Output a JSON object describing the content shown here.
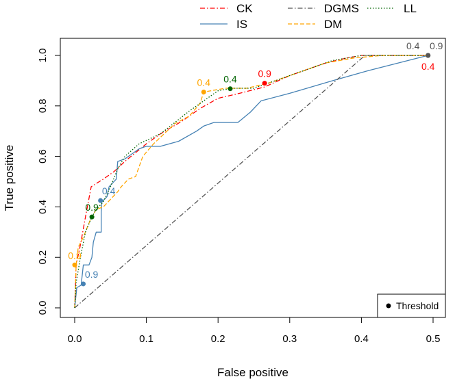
{
  "chart_data": {
    "type": "line",
    "xlabel": "False positive",
    "ylabel": "True positive",
    "xlim": [
      0,
      0.5
    ],
    "ylim": [
      0,
      1
    ],
    "x_ticks": [
      0.0,
      0.1,
      0.2,
      0.3,
      0.4,
      0.5
    ],
    "x_tick_labels": [
      "0.0",
      "0.1",
      "0.2",
      "0.3",
      "0.4",
      "0.5"
    ],
    "y_ticks": [
      0.0,
      0.2,
      0.4,
      0.6,
      0.8,
      1.0
    ],
    "y_tick_labels": [
      "0.0",
      "0.2",
      "0.4",
      "0.6",
      "0.8",
      "1.0"
    ],
    "grid": false,
    "legend_position": "top",
    "series": [
      {
        "name": "CK",
        "color": "#ff0000",
        "dash": "dashdot",
        "points": [
          [
            0,
            0
          ],
          [
            0.002,
            0.17
          ],
          [
            0.008,
            0.25
          ],
          [
            0.015,
            0.36
          ],
          [
            0.023,
            0.48
          ],
          [
            0.04,
            0.51
          ],
          [
            0.055,
            0.54
          ],
          [
            0.07,
            0.58
          ],
          [
            0.1,
            0.65
          ],
          [
            0.12,
            0.69
          ],
          [
            0.15,
            0.74
          ],
          [
            0.175,
            0.79
          ],
          [
            0.2,
            0.83
          ],
          [
            0.23,
            0.85
          ],
          [
            0.265,
            0.875
          ],
          [
            0.3,
            0.92
          ],
          [
            0.35,
            0.97
          ],
          [
            0.38,
            0.99
          ],
          [
            0.4,
            1.0
          ],
          [
            0.43,
            1.0
          ],
          [
            0.493,
            1.0
          ]
        ]
      },
      {
        "name": "IS",
        "color": "#4682b4",
        "dash": "solid",
        "points": [
          [
            0,
            0
          ],
          [
            0.003,
            0.08
          ],
          [
            0.009,
            0.09
          ],
          [
            0.012,
            0.17
          ],
          [
            0.02,
            0.17
          ],
          [
            0.024,
            0.2
          ],
          [
            0.026,
            0.26
          ],
          [
            0.03,
            0.3
          ],
          [
            0.037,
            0.3
          ],
          [
            0.037,
            0.38
          ],
          [
            0.038,
            0.42
          ],
          [
            0.045,
            0.44
          ],
          [
            0.048,
            0.48
          ],
          [
            0.058,
            0.51
          ],
          [
            0.06,
            0.58
          ],
          [
            0.07,
            0.59
          ],
          [
            0.08,
            0.61
          ],
          [
            0.09,
            0.63
          ],
          [
            0.1,
            0.64
          ],
          [
            0.12,
            0.64
          ],
          [
            0.145,
            0.66
          ],
          [
            0.17,
            0.7
          ],
          [
            0.18,
            0.72
          ],
          [
            0.195,
            0.735
          ],
          [
            0.228,
            0.735
          ],
          [
            0.245,
            0.775
          ],
          [
            0.26,
            0.82
          ],
          [
            0.3,
            0.85
          ],
          [
            0.36,
            0.9
          ],
          [
            0.41,
            0.94
          ],
          [
            0.493,
            1.0
          ]
        ]
      },
      {
        "name": "DGMS",
        "color": "#555555",
        "dash": "dashdot",
        "points": [
          [
            0,
            0
          ],
          [
            0.405,
            1.0
          ],
          [
            0.493,
            1.0
          ]
        ]
      },
      {
        "name": "DM",
        "color": "#ffa500",
        "dash": "dashed",
        "points": [
          [
            0,
            0
          ],
          [
            0.002,
            0.17
          ],
          [
            0.005,
            0.24
          ],
          [
            0.012,
            0.28
          ],
          [
            0.022,
            0.35
          ],
          [
            0.03,
            0.39
          ],
          [
            0.04,
            0.4
          ],
          [
            0.05,
            0.43
          ],
          [
            0.06,
            0.46
          ],
          [
            0.065,
            0.48
          ],
          [
            0.075,
            0.51
          ],
          [
            0.085,
            0.52
          ],
          [
            0.095,
            0.6
          ],
          [
            0.11,
            0.65
          ],
          [
            0.14,
            0.73
          ],
          [
            0.16,
            0.76
          ],
          [
            0.175,
            0.81
          ],
          [
            0.18,
            0.855
          ],
          [
            0.21,
            0.87
          ],
          [
            0.24,
            0.87
          ],
          [
            0.27,
            0.89
          ],
          [
            0.3,
            0.92
          ],
          [
            0.35,
            0.97
          ],
          [
            0.39,
            0.99
          ],
          [
            0.43,
            1.0
          ],
          [
            0.493,
            1.0
          ]
        ]
      },
      {
        "name": "LL",
        "color": "#006400",
        "dash": "dotted",
        "points": [
          [
            0,
            0
          ],
          [
            0.002,
            0.1
          ],
          [
            0.008,
            0.2
          ],
          [
            0.015,
            0.3
          ],
          [
            0.024,
            0.36
          ],
          [
            0.03,
            0.39
          ],
          [
            0.04,
            0.42
          ],
          [
            0.05,
            0.48
          ],
          [
            0.06,
            0.55
          ],
          [
            0.07,
            0.6
          ],
          [
            0.09,
            0.65
          ],
          [
            0.12,
            0.69
          ],
          [
            0.16,
            0.78
          ],
          [
            0.18,
            0.82
          ],
          [
            0.2,
            0.86
          ],
          [
            0.22,
            0.87
          ],
          [
            0.25,
            0.87
          ],
          [
            0.28,
            0.9
          ],
          [
            0.32,
            0.94
          ],
          [
            0.36,
            0.98
          ],
          [
            0.4,
            1.0
          ],
          [
            0.493,
            1.0
          ]
        ]
      }
    ],
    "threshold_points": [
      {
        "series": "CK",
        "x": 0.265,
        "y": 0.89,
        "label": "0.9",
        "color": "#ff0000",
        "dot_color": "#ff0000",
        "label_pos": "above"
      },
      {
        "series": "CK",
        "x": 0.493,
        "y": 1.0,
        "label": "0.4",
        "color": "#ff0000",
        "dot_color": "#555555",
        "label_pos": "below"
      },
      {
        "series": "IS",
        "x": 0.012,
        "y": 0.095,
        "label": "0.9",
        "color": "#4682b4",
        "dot_color": "#4682b4",
        "label_pos": "above-right"
      },
      {
        "series": "IS",
        "x": 0.036,
        "y": 0.425,
        "label": "0.4",
        "color": "#4682b4",
        "dot_color": "#4682b4",
        "label_pos": "above-right"
      },
      {
        "series": "DGMS",
        "x": 0.493,
        "y": 1.0,
        "label": "0.4",
        "color": "#555555",
        "dot_color": "#555555",
        "label_pos": "above-left"
      },
      {
        "series": "DGMS",
        "x": 0.493,
        "y": 1.0,
        "label": "0.9",
        "color": "#555555",
        "dot_color": "#555555",
        "label_pos": "above-right"
      },
      {
        "series": "DM",
        "x": 0.0,
        "y": 0.17,
        "label": "0.9",
        "color": "#ffa500",
        "dot_color": "#ffa500",
        "label_pos": "above"
      },
      {
        "series": "DM",
        "x": 0.18,
        "y": 0.855,
        "label": "0.4",
        "color": "#ffa500",
        "dot_color": "#ffa500",
        "label_pos": "above"
      },
      {
        "series": "LL",
        "x": 0.024,
        "y": 0.36,
        "label": "0.9",
        "color": "#006400",
        "dot_color": "#006400",
        "label_pos": "above"
      },
      {
        "series": "LL",
        "x": 0.217,
        "y": 0.868,
        "label": "0.4",
        "color": "#006400",
        "dot_color": "#006400",
        "label_pos": "above"
      }
    ],
    "threshold_legend": {
      "label": "Threshold",
      "position": "bottom-right"
    }
  }
}
